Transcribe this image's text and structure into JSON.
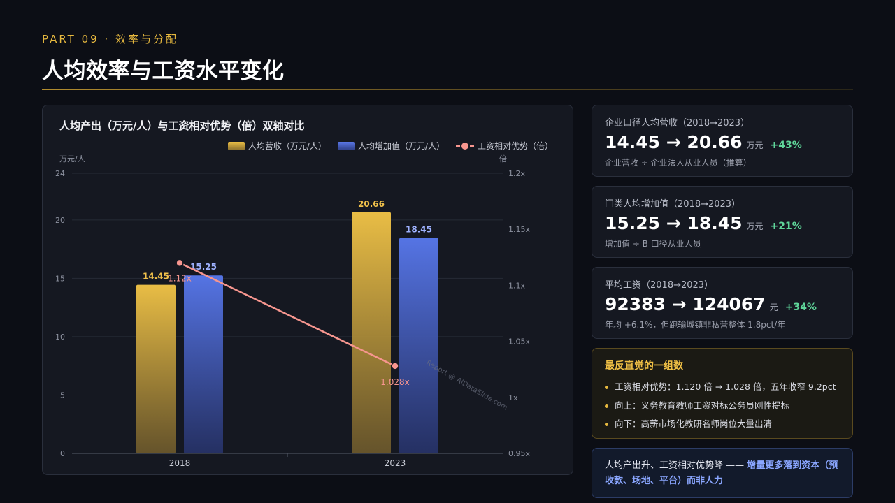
{
  "header": {
    "kicker": "PART 09 · 效率与分配",
    "title": "人均效率与工资水平变化"
  },
  "chart_data": {
    "type": "bar",
    "title": "人均产出（万元/人）与工资相对优势（倍）双轴对比",
    "categories": [
      "2018",
      "2023"
    ],
    "left_axis": {
      "unit": "万元/人",
      "ylim": [
        0,
        24
      ],
      "ticks": [
        "0",
        "5",
        "10",
        "15",
        "20",
        "24"
      ],
      "tick_values": [
        0,
        5,
        10,
        15,
        20,
        24
      ]
    },
    "right_axis": {
      "unit": "倍",
      "ylim": [
        0.95,
        1.2
      ],
      "ticks": [
        "0.95x",
        "1x",
        "1.05x",
        "1.1x",
        "1.15x",
        "1.2x"
      ],
      "tick_values": [
        0.95,
        1.0,
        1.05,
        1.1,
        1.15,
        1.2
      ]
    },
    "series": [
      {
        "name": "人均营收（万元/人）",
        "kind": "bar",
        "axis": "left",
        "color": "#e9bd45",
        "values": [
          14.45,
          20.66
        ],
        "labels": [
          "14.45",
          "20.66"
        ]
      },
      {
        "name": "人均增加值（万元/人）",
        "kind": "bar",
        "axis": "left",
        "color": "#5a77e6",
        "values": [
          15.25,
          18.45
        ],
        "labels": [
          "15.25",
          "18.45"
        ]
      },
      {
        "name": "工资相对优势（倍）",
        "kind": "line",
        "axis": "right",
        "color": "#f7968f",
        "values": [
          1.12,
          1.028
        ],
        "labels": [
          "1.12x",
          "1.028x"
        ]
      }
    ],
    "legend_position": "top-right",
    "grid": true,
    "watermark": "Report @ AIDataSlide.com"
  },
  "stats": [
    {
      "label": "企业口径人均营收（2018→2023）",
      "value": "14.45 → 20.66",
      "unit": "万元",
      "change": "+43%",
      "note": "企业营收 ÷ 企业法人从业人员（推算）"
    },
    {
      "label": "门类人均增加值（2018→2023）",
      "value": "15.25 → 18.45",
      "unit": "万元",
      "change": "+21%",
      "note": "增加值 ÷ B 口径从业人员"
    },
    {
      "label": "平均工资（2018→2023）",
      "value": "92383 → 124067",
      "unit": "元",
      "change": "+34%",
      "note": "年均 +6.1%，但跑输城镇非私营整体 1.8pct/年"
    }
  ],
  "insight": {
    "title": "最反直觉的一组数",
    "items": [
      "工资相对优势：1.120 倍 → 1.028 倍，五年收窄 9.2pct",
      "向上：义务教育教师工资对标公务员刚性提标",
      "向下：高薪市场化教研名师岗位大量出清"
    ]
  },
  "conclusion": {
    "lead": "人均产出升、工资相对优势降 —— ",
    "emphasis": "增量更多落到资本（预收款、场地、平台）而非人力"
  },
  "colors": {
    "accent": "#e7b93f",
    "positive": "#5fd69a",
    "highlight": "#8aa6ff"
  }
}
